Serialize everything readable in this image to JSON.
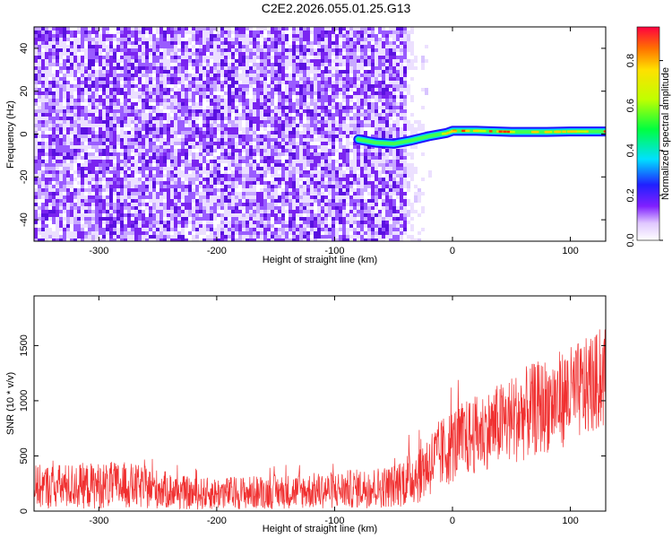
{
  "title": "C2E2.2026.055.01.25.G13",
  "chart_data": [
    {
      "type": "heatmap",
      "xlabel": "Height of straight line (km)",
      "ylabel": "Frequency (Hz)",
      "xlim": [
        -355,
        130
      ],
      "ylim": [
        -50,
        50
      ],
      "x_ticks": [
        -300,
        -200,
        -100,
        0,
        100
      ],
      "y_ticks": [
        -40,
        -20,
        0,
        20,
        40
      ],
      "colorbar": {
        "label": "Normalized spectral amplitude",
        "range": [
          0,
          0.95
        ],
        "ticks": [
          0.0,
          0.2,
          0.4,
          0.6,
          0.8
        ]
      },
      "signal_track": [
        {
          "x": -80,
          "y": -2.5
        },
        {
          "x": -65,
          "y": -4
        },
        {
          "x": -50,
          "y": -4.5
        },
        {
          "x": -35,
          "y": -3
        },
        {
          "x": -20,
          "y": -1
        },
        {
          "x": -5,
          "y": 0.5
        },
        {
          "x": 0,
          "y": 1.5
        },
        {
          "x": 20,
          "y": 1.5
        },
        {
          "x": 50,
          "y": 1
        },
        {
          "x": 80,
          "y": 1
        },
        {
          "x": 100,
          "y": 1.2
        },
        {
          "x": 130,
          "y": 1.2
        }
      ],
      "noise_extent_x": [
        -355,
        -40
      ]
    },
    {
      "type": "line",
      "xlabel": "Height of straight line (km)",
      "ylabel": "SNR (10 * v/v)",
      "xlim": [
        -355,
        130
      ],
      "ylim": [
        0,
        1950
      ],
      "x_ticks": [
        -300,
        -200,
        -100,
        0,
        100
      ],
      "y_ticks": [
        0,
        500,
        1000,
        1500
      ],
      "color": "#f03030",
      "envelope": [
        {
          "x": -355,
          "low": 20,
          "high": 420
        },
        {
          "x": -280,
          "low": 20,
          "high": 450
        },
        {
          "x": -250,
          "low": 20,
          "high": 380
        },
        {
          "x": -220,
          "low": 10,
          "high": 300
        },
        {
          "x": -150,
          "low": 20,
          "high": 330
        },
        {
          "x": -100,
          "low": 20,
          "high": 360
        },
        {
          "x": -50,
          "low": 30,
          "high": 420
        },
        {
          "x": -30,
          "low": 60,
          "high": 620
        },
        {
          "x": 0,
          "low": 250,
          "high": 950
        },
        {
          "x": 30,
          "low": 380,
          "high": 1100
        },
        {
          "x": 60,
          "low": 450,
          "high": 1300
        },
        {
          "x": 100,
          "low": 600,
          "high": 1500
        },
        {
          "x": 130,
          "low": 750,
          "high": 1650
        }
      ]
    }
  ]
}
